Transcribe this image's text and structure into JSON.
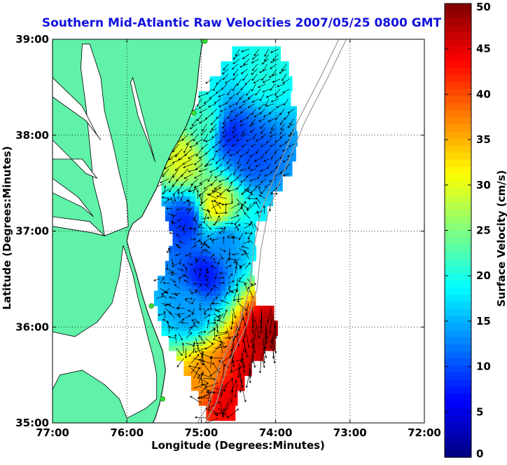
{
  "chart_data": {
    "type": "heatmap",
    "title": "Southern Mid-Atlantic Raw Velocities 2007/05/25 0800 GMT",
    "xlabel": "Longitude (Degrees:Minutes)",
    "ylabel": "Latitude (Degrees:Minutes)",
    "xlim": [
      -77,
      -72
    ],
    "ylim": [
      35,
      39
    ],
    "x_ticks": [
      {
        "value": -77,
        "label": "77:00"
      },
      {
        "value": -76,
        "label": "76:00"
      },
      {
        "value": -75,
        "label": "75:00"
      },
      {
        "value": -74,
        "label": "74:00"
      },
      {
        "value": -73,
        "label": "73:00"
      },
      {
        "value": -72,
        "label": "72:00"
      }
    ],
    "y_ticks": [
      {
        "value": 39,
        "label": "39:00"
      },
      {
        "value": 38,
        "label": "38:00"
      },
      {
        "value": 37,
        "label": "37:00"
      },
      {
        "value": 36,
        "label": "36:00"
      },
      {
        "value": 35,
        "label": "35:00"
      }
    ],
    "grid": true,
    "colorbar": {
      "label": "Surface Velocity (cm/s)",
      "min": 0,
      "max": 50,
      "colormap": "jet",
      "ticks": [
        {
          "value": 0,
          "label": "0"
        },
        {
          "value": 5,
          "label": "5"
        },
        {
          "value": 10,
          "label": "10"
        },
        {
          "value": 15,
          "label": "15"
        },
        {
          "value": 20,
          "label": "20"
        },
        {
          "value": 25,
          "label": "25"
        },
        {
          "value": 30,
          "label": "30"
        },
        {
          "value": 35,
          "label": "35"
        },
        {
          "value": 40,
          "label": "40"
        },
        {
          "value": 45,
          "label": "45"
        },
        {
          "value": 50,
          "label": "50"
        }
      ]
    },
    "velocity_regions": [
      {
        "lon": -74.1,
        "lat": 35.95,
        "speed": 48
      },
      {
        "lon": -74.3,
        "lat": 35.6,
        "speed": 46
      },
      {
        "lon": -74.7,
        "lat": 35.3,
        "speed": 45
      },
      {
        "lon": -74.9,
        "lat": 35.45,
        "speed": 36
      },
      {
        "lon": -74.8,
        "lat": 37.25,
        "speed": 32
      },
      {
        "lon": -75.25,
        "lat": 37.75,
        "speed": 30
      },
      {
        "lon": -74.95,
        "lat": 38.1,
        "speed": 22
      },
      {
        "lon": -74.15,
        "lat": 38.65,
        "speed": 20
      },
      {
        "lon": -75.2,
        "lat": 37.1,
        "speed": 8
      },
      {
        "lon": -74.6,
        "lat": 38.0,
        "speed": 8
      },
      {
        "lon": -74.3,
        "lat": 37.8,
        "speed": 10
      },
      {
        "lon": -74.95,
        "lat": 36.55,
        "speed": 7
      },
      {
        "lon": -74.7,
        "lat": 36.9,
        "speed": 13
      },
      {
        "lon": -75.15,
        "lat": 36.2,
        "speed": 14
      }
    ],
    "hf_radar_sites": [
      {
        "lon": -74.95,
        "lat": 38.98
      },
      {
        "lon": -75.1,
        "lat": 38.23
      },
      {
        "lon": -75.67,
        "lat": 36.22
      },
      {
        "lon": -75.52,
        "lat": 35.25
      }
    ]
  },
  "colors": {
    "title": "#1010e0",
    "land": "#5ff2a8",
    "coastline": "#000000",
    "isobath": "#9a9a9a",
    "radar_site": "#33dd33",
    "arrow": "#000000"
  }
}
